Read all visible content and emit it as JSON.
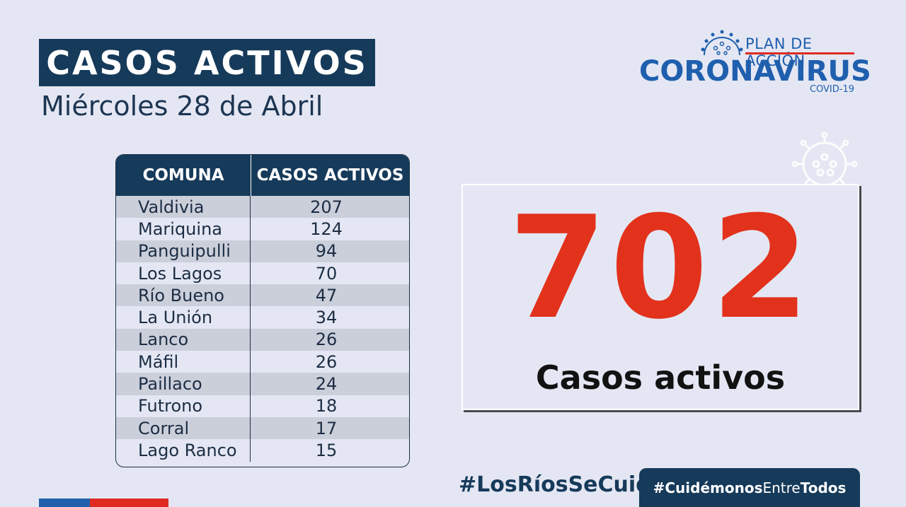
{
  "header": {
    "title": "CASOS ACTIVOS",
    "date": "Miércoles 28 de Abril"
  },
  "logo": {
    "plan": "PLAN DE ACCIÓN",
    "main": "CORONAVIRUS",
    "sub": "COVID-19",
    "icon": "coronavirus-icon",
    "brand_color": "#1f5fae",
    "accent_color": "#e02b22"
  },
  "table": {
    "headers": [
      "COMUNA",
      "CASOS ACTIVOS"
    ],
    "rows": [
      {
        "comuna": "Valdivia",
        "casos": "207"
      },
      {
        "comuna": "Mariquina",
        "casos": "124"
      },
      {
        "comuna": "Panguipulli",
        "casos": "94"
      },
      {
        "comuna": "Los Lagos",
        "casos": "70"
      },
      {
        "comuna": "Río Bueno",
        "casos": "47"
      },
      {
        "comuna": "La Unión",
        "casos": "34"
      },
      {
        "comuna": "Lanco",
        "casos": "26"
      },
      {
        "comuna": "Máfil",
        "casos": "26"
      },
      {
        "comuna": "Paillaco",
        "casos": "24"
      },
      {
        "comuna": "Futrono",
        "casos": "18"
      },
      {
        "comuna": "Corral",
        "casos": "17"
      },
      {
        "comuna": "Lago Ranco",
        "casos": "15"
      }
    ],
    "header_color": "#163a5a"
  },
  "summary": {
    "total": "702",
    "label": "Casos activos",
    "number_color": "#e2321c"
  },
  "footer": {
    "hashtag1": "#LosRíosSeCuida",
    "hashtag2_a": "#Cuidémonos",
    "hashtag2_b": "Entre",
    "hashtag2_c": "Todos"
  }
}
